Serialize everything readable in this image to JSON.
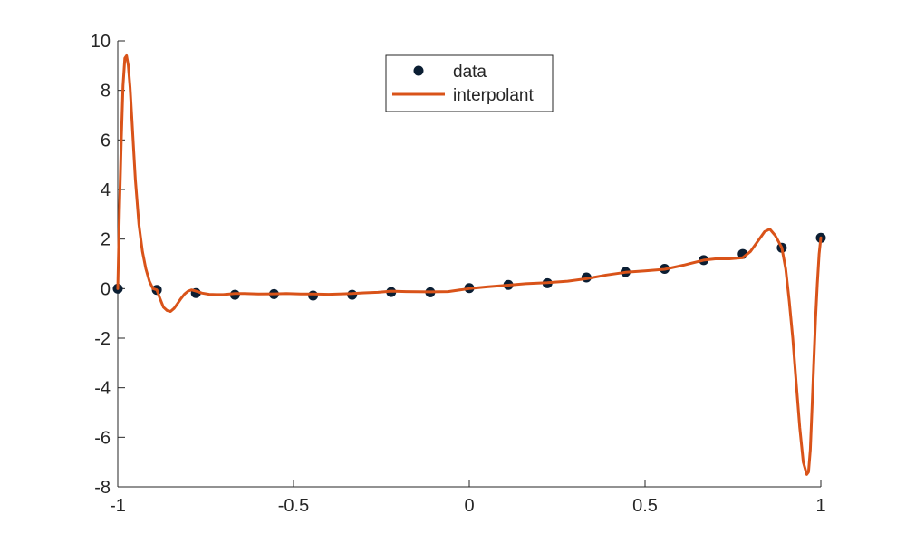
{
  "chart_data": {
    "type": "line",
    "title": "",
    "xlabel": "",
    "ylabel": "",
    "xlim": [
      -1,
      1
    ],
    "ylim": [
      -8,
      10
    ],
    "x_ticks": [
      "-1",
      "-0.5",
      "0",
      "0.5",
      "1"
    ],
    "y_ticks": [
      "10",
      "8",
      "6",
      "4",
      "2",
      "0",
      "-2",
      "-4",
      "-6",
      "-8"
    ],
    "grid": false,
    "box": false,
    "legend_position": "top-center",
    "series": [
      {
        "name": "data",
        "kind": "scatter",
        "marker": "filled-circle",
        "color": "#0b1e33",
        "x": [
          -1.0,
          -0.8889,
          -0.7778,
          -0.6667,
          -0.5556,
          -0.4444,
          -0.3333,
          -0.2222,
          -0.1111,
          0.0,
          0.1111,
          0.2222,
          0.3333,
          0.4444,
          0.5556,
          0.6667,
          0.7778,
          0.8889,
          1.0
        ],
        "y": [
          0.0,
          -0.05,
          -0.18,
          -0.25,
          -0.22,
          -0.28,
          -0.25,
          -0.14,
          -0.15,
          0.02,
          0.15,
          0.22,
          0.45,
          0.67,
          0.8,
          1.15,
          1.4,
          1.65,
          2.05
        ]
      },
      {
        "name": "interpolant",
        "kind": "line",
        "color": "#d95319",
        "x": [
          -1.0,
          -0.995,
          -0.99,
          -0.985,
          -0.98,
          -0.975,
          -0.97,
          -0.965,
          -0.96,
          -0.955,
          -0.95,
          -0.94,
          -0.93,
          -0.92,
          -0.91,
          -0.9,
          -0.8889,
          -0.88,
          -0.87,
          -0.86,
          -0.85,
          -0.84,
          -0.83,
          -0.82,
          -0.81,
          -0.8,
          -0.79,
          -0.7778,
          -0.76,
          -0.74,
          -0.72,
          -0.7,
          -0.6667,
          -0.64,
          -0.6,
          -0.5556,
          -0.52,
          -0.48,
          -0.4444,
          -0.4,
          -0.3333,
          -0.3,
          -0.26,
          -0.2222,
          -0.18,
          -0.1111,
          -0.06,
          0.0,
          0.05,
          0.1111,
          0.16,
          0.2222,
          0.28,
          0.3333,
          0.39,
          0.4444,
          0.5,
          0.5556,
          0.61,
          0.6667,
          0.7,
          0.74,
          0.7778,
          0.8,
          0.82,
          0.84,
          0.855,
          0.87,
          0.8889,
          0.9,
          0.91,
          0.92,
          0.93,
          0.94,
          0.95,
          0.96,
          0.965,
          0.97,
          0.975,
          0.98,
          0.985,
          0.99,
          0.995,
          1.0
        ],
        "y": [
          0.0,
          3.2,
          6.0,
          8.2,
          9.3,
          9.4,
          9.0,
          8.1,
          6.9,
          5.6,
          4.4,
          2.6,
          1.5,
          0.8,
          0.3,
          0.0,
          -0.05,
          -0.4,
          -0.75,
          -0.88,
          -0.92,
          -0.8,
          -0.6,
          -0.4,
          -0.22,
          -0.1,
          -0.05,
          -0.1,
          -0.18,
          -0.23,
          -0.24,
          -0.24,
          -0.2,
          -0.2,
          -0.22,
          -0.21,
          -0.2,
          -0.22,
          -0.22,
          -0.23,
          -0.2,
          -0.17,
          -0.15,
          -0.1,
          -0.12,
          -0.13,
          -0.12,
          0.0,
          0.07,
          0.14,
          0.2,
          0.24,
          0.3,
          0.4,
          0.55,
          0.66,
          0.72,
          0.78,
          0.95,
          1.15,
          1.2,
          1.2,
          1.25,
          1.5,
          1.9,
          2.3,
          2.4,
          2.15,
          1.65,
          0.8,
          -0.5,
          -2.0,
          -3.8,
          -5.6,
          -7.0,
          -7.5,
          -7.4,
          -6.5,
          -4.8,
          -3.0,
          -1.2,
          0.2,
          1.4,
          2.05
        ]
      }
    ]
  }
}
